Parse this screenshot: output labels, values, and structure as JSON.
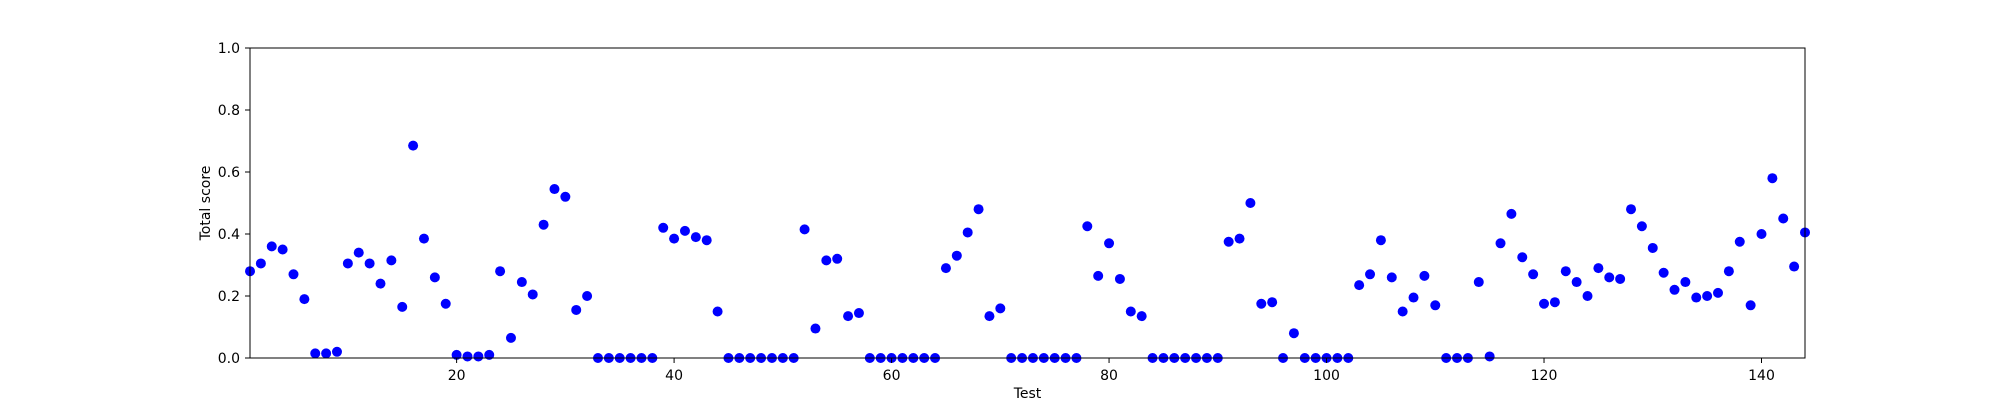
{
  "chart_data": {
    "type": "scatter",
    "title": "",
    "xlabel": "Test",
    "ylabel": "Total score",
    "xlim": [
      1,
      144
    ],
    "ylim": [
      0.0,
      1.0
    ],
    "xticks": [
      20,
      40,
      60,
      80,
      100,
      120,
      140
    ],
    "yticks": [
      0.0,
      0.2,
      0.4,
      0.6,
      0.8,
      1.0
    ],
    "xtick_labels": [
      "20",
      "40",
      "60",
      "80",
      "100",
      "120",
      "140"
    ],
    "ytick_labels": [
      "0.0",
      "0.2",
      "0.4",
      "0.6",
      "0.8",
      "1.0"
    ],
    "grid": false,
    "marker_color": "#0000ff",
    "series": [
      {
        "x": [
          1,
          2,
          3,
          4,
          5,
          6,
          7,
          8,
          9,
          10,
          11,
          12,
          13,
          14,
          15,
          16,
          17,
          18,
          19,
          20,
          21,
          22,
          23,
          24,
          25,
          26,
          27,
          28,
          29,
          30,
          31,
          32,
          33,
          34,
          35,
          36,
          37,
          38,
          39,
          40,
          41,
          42,
          43,
          44,
          45,
          46,
          47,
          48,
          49,
          50,
          51,
          52,
          53,
          54,
          55,
          56,
          57,
          58,
          59,
          60,
          61,
          62,
          63,
          64,
          65,
          66,
          67,
          68,
          69,
          70,
          71,
          72,
          73,
          74,
          75,
          76,
          77,
          78,
          79,
          80,
          81,
          82,
          83,
          84,
          85,
          86,
          87,
          88,
          89,
          90,
          91,
          92,
          93,
          94,
          95,
          96,
          97,
          98,
          99,
          100,
          101,
          102,
          103,
          104,
          105,
          106,
          107,
          108,
          109,
          110,
          111,
          112,
          113,
          114,
          115,
          116,
          117,
          118,
          119,
          120,
          121,
          122,
          123,
          124,
          125,
          126,
          127,
          128,
          129,
          130,
          131,
          132,
          133,
          134,
          135,
          136,
          137,
          138,
          139,
          140,
          141,
          142,
          143,
          144
        ],
        "y": [
          0.28,
          0.305,
          0.36,
          0.35,
          0.27,
          0.19,
          0.015,
          0.015,
          0.02,
          0.305,
          0.34,
          0.305,
          0.24,
          0.315,
          0.165,
          0.685,
          0.385,
          0.26,
          0.175,
          0.01,
          0.005,
          0.005,
          0.01,
          0.28,
          0.065,
          0.245,
          0.205,
          0.43,
          0.545,
          0.52,
          0.155,
          0.2,
          0.0,
          0.0,
          0.0,
          0.0,
          0.0,
          0.0,
          0.42,
          0.385,
          0.41,
          0.39,
          0.38,
          0.15,
          0.0,
          0.0,
          0.0,
          0.0,
          0.0,
          0.0,
          0.0,
          0.415,
          0.095,
          0.315,
          0.32,
          0.135,
          0.145,
          0.0,
          0.0,
          0.0,
          0.0,
          0.0,
          0.0,
          0.0,
          0.29,
          0.33,
          0.405,
          0.48,
          0.135,
          0.16,
          0.0,
          0.0,
          0.0,
          0.0,
          0.0,
          0.0,
          0.0,
          0.425,
          0.265,
          0.37,
          0.255,
          0.15,
          0.135,
          0.0,
          0.0,
          0.0,
          0.0,
          0.0,
          0.0,
          0.0,
          0.375,
          0.385,
          0.5,
          0.175,
          0.18,
          0.0,
          0.08,
          0.0,
          0.0,
          0.0,
          0.0,
          0.0,
          0.235,
          0.27,
          0.38,
          0.26,
          0.15,
          0.195,
          0.265,
          0.17,
          0.0,
          0.0,
          0.0,
          0.245,
          0.005,
          0.37,
          0.465,
          0.325,
          0.27,
          0.175,
          0.18,
          0.28,
          0.245,
          0.2,
          0.29,
          0.26,
          0.255,
          0.48,
          0.425,
          0.355,
          0.275,
          0.22,
          0.245,
          0.195,
          0.2,
          0.21,
          0.28,
          0.375,
          0.17,
          0.4,
          0.58,
          0.45,
          0.295,
          0.405
        ]
      }
    ]
  }
}
